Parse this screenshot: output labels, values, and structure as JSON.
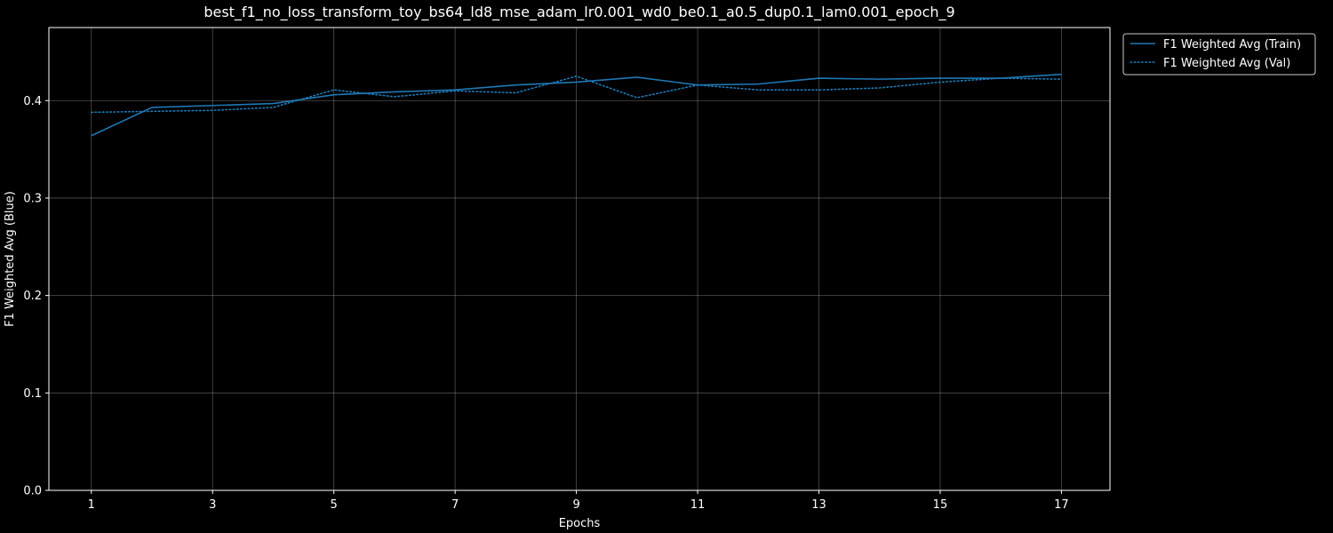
{
  "chart_data": {
    "type": "line",
    "title": "best_f1_no_loss_transform_toy_bs64_ld8_mse_adam_lr0.001_wd0_be0.1_a0.5_dup0.1_lam0.001_epoch_9",
    "xlabel": "Epochs",
    "ylabel": "F1 Weighted Avg (Blue)",
    "xlim": [
      0.3,
      17.8
    ],
    "ylim": [
      0,
      0.475
    ],
    "xticks": [
      1,
      3,
      5,
      7,
      9,
      11,
      13,
      15,
      17
    ],
    "xtick_labels": [
      "1",
      "3",
      "5",
      "7",
      "9",
      "11",
      "13",
      "15",
      "17"
    ],
    "yticks": [
      0.0,
      0.1,
      0.2,
      0.3,
      0.4
    ],
    "ytick_labels": [
      "0.0",
      "0.1",
      "0.2",
      "0.3",
      "0.4"
    ],
    "grid": true,
    "legend_position": "outside-top-right",
    "x": [
      1,
      2,
      3,
      4,
      5,
      6,
      7,
      8,
      9,
      10,
      11,
      12,
      13,
      14,
      15,
      16,
      17
    ],
    "series": [
      {
        "name": "F1 Weighted Avg (Train)",
        "color": "#1f77b4",
        "style": "solid",
        "values": [
          0.364,
          0.393,
          0.395,
          0.397,
          0.406,
          0.409,
          0.411,
          0.416,
          0.419,
          0.424,
          0.416,
          0.417,
          0.423,
          0.422,
          0.423,
          0.423,
          0.427
        ]
      },
      {
        "name": "F1 Weighted Avg (Val)",
        "color": "#1f77b4",
        "style": "dotted",
        "values": [
          0.388,
          0.389,
          0.39,
          0.393,
          0.411,
          0.404,
          0.41,
          0.408,
          0.425,
          0.403,
          0.416,
          0.411,
          0.411,
          0.413,
          0.419,
          0.423,
          0.422
        ]
      }
    ]
  }
}
